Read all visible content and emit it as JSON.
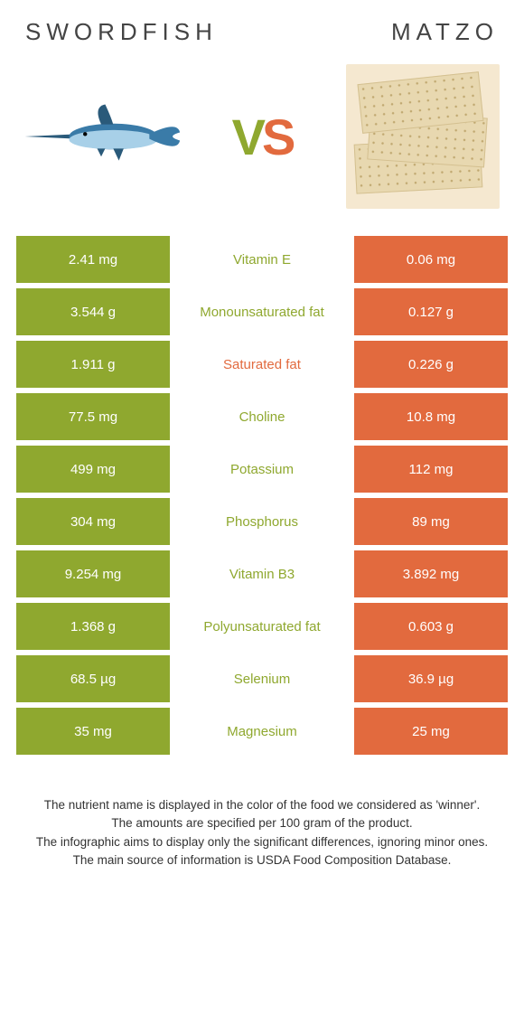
{
  "titles": {
    "left": "SWORDFISH",
    "right": "MATZO"
  },
  "vs": {
    "v": "V",
    "s": "S"
  },
  "colors": {
    "left": "#8fa82f",
    "right": "#e26a3e",
    "text": "#444444",
    "footer": "#333333",
    "background": "#ffffff"
  },
  "rows": [
    {
      "left": "2.41 mg",
      "center": "Vitamin E",
      "right": "0.06 mg",
      "winner": "left"
    },
    {
      "left": "3.544 g",
      "center": "Monounsaturated fat",
      "right": "0.127 g",
      "winner": "left"
    },
    {
      "left": "1.911 g",
      "center": "Saturated fat",
      "right": "0.226 g",
      "winner": "right"
    },
    {
      "left": "77.5 mg",
      "center": "Choline",
      "right": "10.8 mg",
      "winner": "left"
    },
    {
      "left": "499 mg",
      "center": "Potassium",
      "right": "112 mg",
      "winner": "left"
    },
    {
      "left": "304 mg",
      "center": "Phosphorus",
      "right": "89 mg",
      "winner": "left"
    },
    {
      "left": "9.254 mg",
      "center": "Vitamin B3",
      "right": "3.892 mg",
      "winner": "left"
    },
    {
      "left": "1.368 g",
      "center": "Polyunsaturated fat",
      "right": "0.603 g",
      "winner": "left"
    },
    {
      "left": "68.5 µg",
      "center": "Selenium",
      "right": "36.9 µg",
      "winner": "left"
    },
    {
      "left": "35 mg",
      "center": "Magnesium",
      "right": "25 mg",
      "winner": "left"
    }
  ],
  "footer": {
    "line1": "The nutrient name is displayed in the color of the food we considered as 'winner'.",
    "line2": "The amounts are specified per 100 gram of the product.",
    "line3": "The infographic aims to display only the significant differences, ignoring minor ones.",
    "line4": "The main source of information is USDA Food Composition Database."
  }
}
